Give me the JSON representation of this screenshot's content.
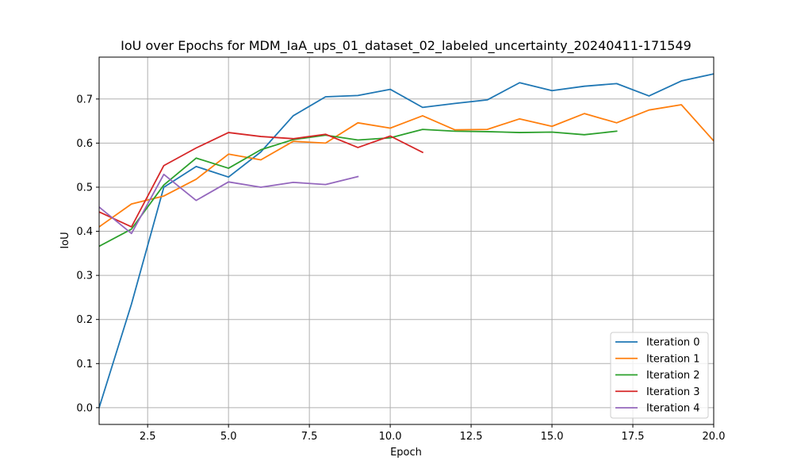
{
  "chart_data": {
    "type": "line",
    "title": "IoU over Epochs for MDM_IaA_ups_01_dataset_02_labeled_uncertainty_20240411-171549",
    "xlabel": "Epoch",
    "ylabel": "IoU",
    "xlim": [
      1,
      20
    ],
    "ylim": [
      -0.038,
      0.795
    ],
    "xticks": [
      2.5,
      5.0,
      7.5,
      10.0,
      12.5,
      15.0,
      17.5,
      20.0
    ],
    "xtick_labels": [
      "2.5",
      "5.0",
      "7.5",
      "10.0",
      "12.5",
      "15.0",
      "17.5",
      "20.0"
    ],
    "yticks": [
      0.0,
      0.1,
      0.2,
      0.3,
      0.4,
      0.5,
      0.6,
      0.7
    ],
    "ytick_labels": [
      "0.0",
      "0.1",
      "0.2",
      "0.3",
      "0.4",
      "0.5",
      "0.6",
      "0.7"
    ],
    "grid": true,
    "legend_position": "lower-right",
    "series": [
      {
        "name": "Iteration 0",
        "color": "#1f77b4",
        "x": [
          1,
          2,
          3,
          4,
          5,
          6,
          7,
          8,
          9,
          10,
          11,
          12,
          13,
          14,
          15,
          16,
          17,
          18,
          19,
          20
        ],
        "y": [
          0.0,
          0.235,
          0.5,
          0.547,
          0.523,
          0.58,
          0.662,
          0.705,
          0.708,
          0.722,
          0.681,
          0.69,
          0.698,
          0.737,
          0.719,
          0.729,
          0.735,
          0.707,
          0.741,
          0.757
        ]
      },
      {
        "name": "Iteration 1",
        "color": "#ff7f0e",
        "x": [
          1,
          2,
          3,
          4,
          5,
          6,
          7,
          8,
          9,
          10,
          11,
          12,
          13,
          14,
          15,
          16,
          17,
          18,
          19,
          20
        ],
        "y": [
          0.41,
          0.462,
          0.48,
          0.518,
          0.575,
          0.562,
          0.604,
          0.6,
          0.646,
          0.634,
          0.662,
          0.63,
          0.631,
          0.655,
          0.638,
          0.667,
          0.646,
          0.675,
          0.687,
          0.605
        ]
      },
      {
        "name": "Iteration 2",
        "color": "#2ca02c",
        "x": [
          1,
          2,
          3,
          4,
          5,
          6,
          7,
          8,
          9,
          10,
          11,
          12,
          13,
          14,
          15,
          16,
          17
        ],
        "y": [
          0.366,
          0.405,
          0.505,
          0.566,
          0.543,
          0.585,
          0.608,
          0.618,
          0.607,
          0.612,
          0.631,
          0.627,
          0.626,
          0.624,
          0.625,
          0.619,
          0.627
        ]
      },
      {
        "name": "Iteration 3",
        "color": "#d62728",
        "x": [
          1,
          2,
          3,
          4,
          5,
          6,
          7,
          8,
          9,
          10,
          11
        ],
        "y": [
          0.444,
          0.41,
          0.549,
          0.589,
          0.624,
          0.615,
          0.61,
          0.62,
          0.59,
          0.616,
          0.579
        ]
      },
      {
        "name": "Iteration 4",
        "color": "#9467bd",
        "x": [
          1,
          2,
          3,
          4,
          5,
          6,
          7,
          8,
          9
        ],
        "y": [
          0.455,
          0.395,
          0.529,
          0.47,
          0.512,
          0.5,
          0.511,
          0.506,
          0.524
        ]
      }
    ]
  }
}
